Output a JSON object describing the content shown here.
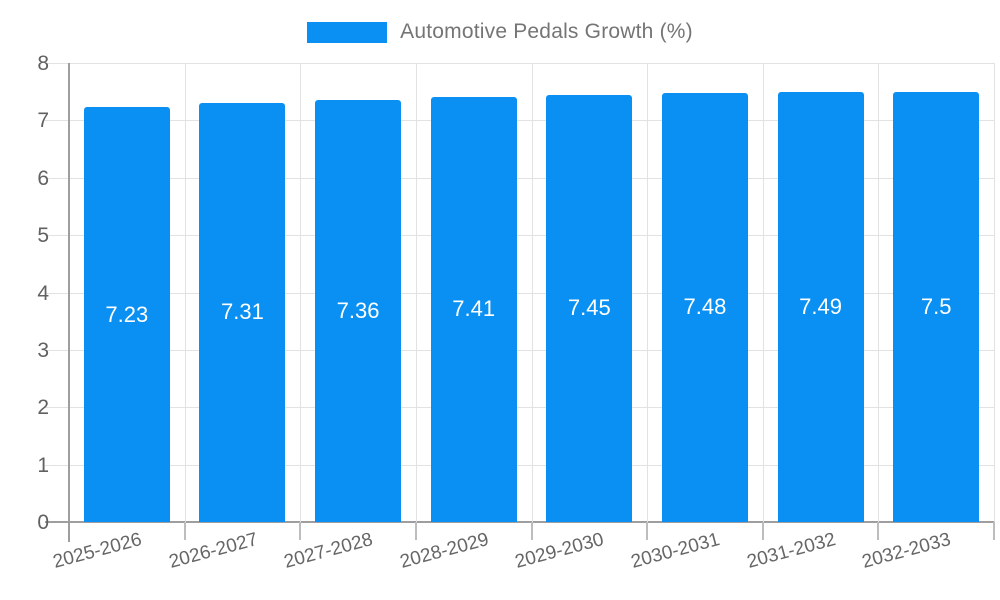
{
  "chart_data": {
    "type": "bar",
    "title": "Automotive Pedals Growth (%)",
    "categories": [
      "2025-2026",
      "2026-2027",
      "2027-2028",
      "2028-2029",
      "2029-2030",
      "2030-2031",
      "2031-2032",
      "2032-2033"
    ],
    "values": [
      7.23,
      7.31,
      7.36,
      7.41,
      7.45,
      7.48,
      7.49,
      7.5
    ],
    "value_labels": [
      "7.23",
      "7.31",
      "7.36",
      "7.41",
      "7.45",
      "7.48",
      "7.49",
      "7.5"
    ],
    "xlabel": "",
    "ylabel": "",
    "ylim": [
      0,
      8
    ],
    "yticks": [
      0,
      1,
      2,
      3,
      4,
      5,
      6,
      7,
      8
    ],
    "grid": true,
    "legend_position": "top-center",
    "colors": {
      "bar": "#0A90F2",
      "axis": "#9E9E9E",
      "gridline": "#E2E2E2",
      "minor_tick": "#BDBDBD",
      "axis_label": "#616161",
      "x_label": "#666666",
      "value_label": "#FFFFFF",
      "legend_text": "#757575",
      "background": "#FFFFFF"
    }
  }
}
